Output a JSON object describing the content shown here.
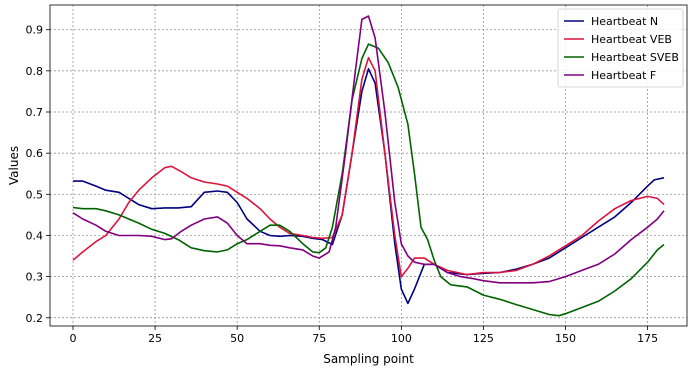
{
  "chart_data": {
    "type": "line",
    "title": "",
    "xlabel": "Sampling point",
    "ylabel": "Values",
    "xlim": [
      -7,
      187
    ],
    "ylim": [
      0.18,
      0.96
    ],
    "xticks": [
      0,
      25,
      50,
      75,
      100,
      125,
      150,
      175
    ],
    "yticks": [
      0.2,
      0.3,
      0.4,
      0.5,
      0.6,
      0.7,
      0.8,
      0.9
    ],
    "grid": true,
    "legend": "top-right",
    "series": [
      {
        "name": "Heartbeat N",
        "color": "#00007f",
        "points": [
          [
            0,
            0.532
          ],
          [
            3,
            0.532
          ],
          [
            7,
            0.52
          ],
          [
            10,
            0.51
          ],
          [
            14,
            0.505
          ],
          [
            17,
            0.49
          ],
          [
            20,
            0.475
          ],
          [
            24,
            0.465
          ],
          [
            28,
            0.467
          ],
          [
            32,
            0.467
          ],
          [
            36,
            0.47
          ],
          [
            40,
            0.505
          ],
          [
            44,
            0.508
          ],
          [
            47,
            0.505
          ],
          [
            50,
            0.48
          ],
          [
            53,
            0.44
          ],
          [
            57,
            0.41
          ],
          [
            60,
            0.4
          ],
          [
            63,
            0.398
          ],
          [
            66,
            0.4
          ],
          [
            70,
            0.398
          ],
          [
            73,
            0.393
          ],
          [
            76,
            0.39
          ],
          [
            79,
            0.378
          ],
          [
            82,
            0.45
          ],
          [
            85,
            0.6
          ],
          [
            88,
            0.75
          ],
          [
            90,
            0.805
          ],
          [
            92,
            0.77
          ],
          [
            95,
            0.6
          ],
          [
            98,
            0.38
          ],
          [
            100,
            0.27
          ],
          [
            102,
            0.235
          ],
          [
            104,
            0.27
          ],
          [
            107,
            0.33
          ],
          [
            110,
            0.33
          ],
          [
            114,
            0.31
          ],
          [
            120,
            0.305
          ],
          [
            125,
            0.308
          ],
          [
            130,
            0.31
          ],
          [
            135,
            0.318
          ],
          [
            140,
            0.33
          ],
          [
            145,
            0.345
          ],
          [
            150,
            0.37
          ],
          [
            155,
            0.395
          ],
          [
            160,
            0.42
          ],
          [
            165,
            0.445
          ],
          [
            170,
            0.48
          ],
          [
            175,
            0.52
          ],
          [
            177,
            0.535
          ],
          [
            180,
            0.54
          ]
        ]
      },
      {
        "name": "Heartbeat VEB",
        "color": "#dc143c",
        "points": [
          [
            0,
            0.34
          ],
          [
            3,
            0.36
          ],
          [
            7,
            0.385
          ],
          [
            10,
            0.4
          ],
          [
            14,
            0.44
          ],
          [
            17,
            0.48
          ],
          [
            20,
            0.51
          ],
          [
            24,
            0.54
          ],
          [
            28,
            0.565
          ],
          [
            30,
            0.568
          ],
          [
            33,
            0.555
          ],
          [
            36,
            0.54
          ],
          [
            40,
            0.53
          ],
          [
            44,
            0.525
          ],
          [
            47,
            0.52
          ],
          [
            50,
            0.505
          ],
          [
            53,
            0.49
          ],
          [
            57,
            0.465
          ],
          [
            60,
            0.44
          ],
          [
            63,
            0.42
          ],
          [
            66,
            0.405
          ],
          [
            70,
            0.4
          ],
          [
            73,
            0.395
          ],
          [
            76,
            0.393
          ],
          [
            79,
            0.395
          ],
          [
            82,
            0.45
          ],
          [
            85,
            0.6
          ],
          [
            88,
            0.78
          ],
          [
            90,
            0.832
          ],
          [
            92,
            0.8
          ],
          [
            95,
            0.6
          ],
          [
            98,
            0.4
          ],
          [
            100,
            0.3
          ],
          [
            102,
            0.32
          ],
          [
            104,
            0.345
          ],
          [
            107,
            0.345
          ],
          [
            110,
            0.33
          ],
          [
            114,
            0.315
          ],
          [
            120,
            0.305
          ],
          [
            125,
            0.31
          ],
          [
            130,
            0.31
          ],
          [
            135,
            0.315
          ],
          [
            140,
            0.33
          ],
          [
            145,
            0.35
          ],
          [
            150,
            0.375
          ],
          [
            155,
            0.4
          ],
          [
            160,
            0.435
          ],
          [
            165,
            0.465
          ],
          [
            170,
            0.485
          ],
          [
            175,
            0.495
          ],
          [
            178,
            0.49
          ],
          [
            180,
            0.475
          ]
        ]
      },
      {
        "name": "Heartbeat SVEB",
        "color": "#006400",
        "points": [
          [
            0,
            0.468
          ],
          [
            3,
            0.465
          ],
          [
            7,
            0.465
          ],
          [
            10,
            0.46
          ],
          [
            14,
            0.45
          ],
          [
            17,
            0.44
          ],
          [
            20,
            0.43
          ],
          [
            24,
            0.415
          ],
          [
            28,
            0.405
          ],
          [
            32,
            0.39
          ],
          [
            36,
            0.37
          ],
          [
            40,
            0.363
          ],
          [
            44,
            0.36
          ],
          [
            47,
            0.365
          ],
          [
            50,
            0.38
          ],
          [
            53,
            0.39
          ],
          [
            57,
            0.41
          ],
          [
            60,
            0.425
          ],
          [
            63,
            0.425
          ],
          [
            66,
            0.41
          ],
          [
            70,
            0.38
          ],
          [
            73,
            0.36
          ],
          [
            75,
            0.358
          ],
          [
            77,
            0.37
          ],
          [
            79,
            0.42
          ],
          [
            82,
            0.55
          ],
          [
            85,
            0.73
          ],
          [
            88,
            0.83
          ],
          [
            90,
            0.865
          ],
          [
            93,
            0.855
          ],
          [
            96,
            0.82
          ],
          [
            99,
            0.76
          ],
          [
            102,
            0.67
          ],
          [
            104,
            0.55
          ],
          [
            106,
            0.42
          ],
          [
            108,
            0.39
          ],
          [
            110,
            0.34
          ],
          [
            112,
            0.3
          ],
          [
            115,
            0.28
          ],
          [
            120,
            0.275
          ],
          [
            125,
            0.255
          ],
          [
            130,
            0.245
          ],
          [
            135,
            0.232
          ],
          [
            140,
            0.22
          ],
          [
            145,
            0.208
          ],
          [
            148,
            0.205
          ],
          [
            150,
            0.21
          ],
          [
            155,
            0.225
          ],
          [
            160,
            0.24
          ],
          [
            165,
            0.265
          ],
          [
            170,
            0.295
          ],
          [
            175,
            0.335
          ],
          [
            178,
            0.365
          ],
          [
            180,
            0.378
          ]
        ]
      },
      {
        "name": "Heartbeat F",
        "color": "#800080",
        "points": [
          [
            0,
            0.455
          ],
          [
            3,
            0.44
          ],
          [
            7,
            0.425
          ],
          [
            10,
            0.41
          ],
          [
            14,
            0.4
          ],
          [
            17,
            0.4
          ],
          [
            20,
            0.4
          ],
          [
            24,
            0.398
          ],
          [
            28,
            0.39
          ],
          [
            30,
            0.392
          ],
          [
            33,
            0.41
          ],
          [
            36,
            0.425
          ],
          [
            40,
            0.44
          ],
          [
            44,
            0.445
          ],
          [
            47,
            0.43
          ],
          [
            50,
            0.4
          ],
          [
            53,
            0.38
          ],
          [
            57,
            0.38
          ],
          [
            60,
            0.376
          ],
          [
            63,
            0.375
          ],
          [
            66,
            0.37
          ],
          [
            70,
            0.365
          ],
          [
            73,
            0.35
          ],
          [
            75,
            0.345
          ],
          [
            78,
            0.36
          ],
          [
            80,
            0.42
          ],
          [
            83,
            0.6
          ],
          [
            86,
            0.8
          ],
          [
            88,
            0.925
          ],
          [
            90,
            0.933
          ],
          [
            92,
            0.88
          ],
          [
            95,
            0.7
          ],
          [
            98,
            0.48
          ],
          [
            100,
            0.38
          ],
          [
            102,
            0.35
          ],
          [
            104,
            0.335
          ],
          [
            107,
            0.33
          ],
          [
            110,
            0.33
          ],
          [
            114,
            0.31
          ],
          [
            118,
            0.3
          ],
          [
            122,
            0.295
          ],
          [
            125,
            0.29
          ],
          [
            130,
            0.285
          ],
          [
            135,
            0.285
          ],
          [
            140,
            0.285
          ],
          [
            145,
            0.288
          ],
          [
            150,
            0.3
          ],
          [
            155,
            0.315
          ],
          [
            160,
            0.33
          ],
          [
            165,
            0.355
          ],
          [
            170,
            0.39
          ],
          [
            175,
            0.42
          ],
          [
            178,
            0.44
          ],
          [
            180,
            0.46
          ]
        ]
      }
    ]
  }
}
